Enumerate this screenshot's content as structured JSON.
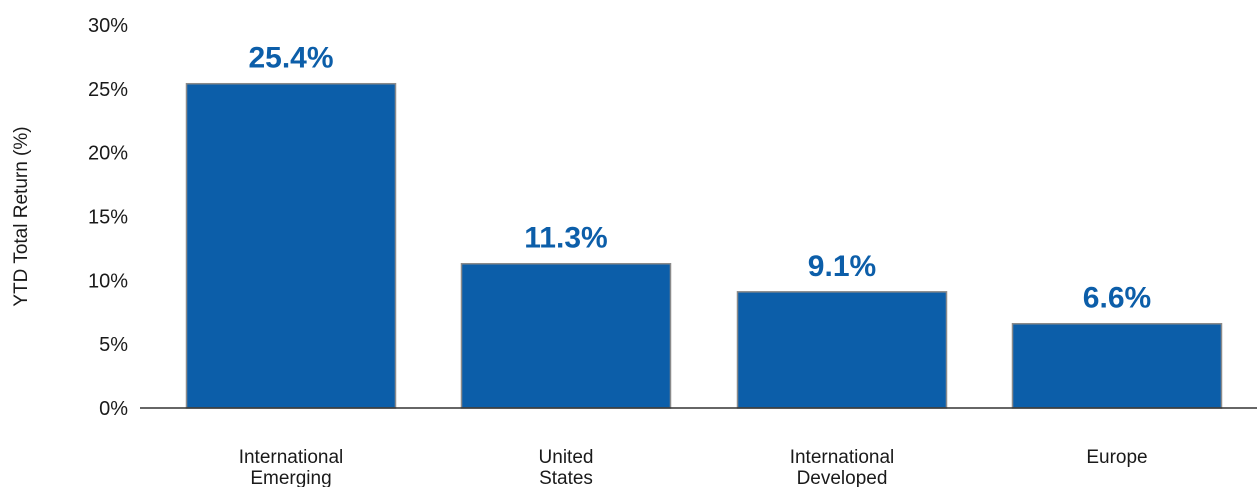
{
  "chart_data": {
    "type": "bar",
    "ylabel": "YTD Total Return (%)",
    "xlabel": "",
    "categories": [
      [
        "International",
        "Emerging"
      ],
      [
        "United",
        "States"
      ],
      [
        "International",
        "Developed"
      ],
      [
        "Europe"
      ]
    ],
    "values": [
      25.4,
      11.3,
      9.1,
      6.6
    ],
    "data_labels": [
      "25.4%",
      "11.3%",
      "9.1%",
      "6.6%"
    ],
    "ylim": [
      0,
      30
    ],
    "yticks": [
      0,
      5,
      10,
      15,
      20,
      25,
      30
    ],
    "ytick_labels": [
      "0%",
      "5%",
      "10%",
      "15%",
      "20%",
      "25%",
      "30%"
    ],
    "grid": false,
    "legend": "none",
    "colors": {
      "bar": "#0c5ea9",
      "bar_edge": "#8a8a8a",
      "data_label": "#0c5ea9",
      "axis": "#333333"
    }
  }
}
